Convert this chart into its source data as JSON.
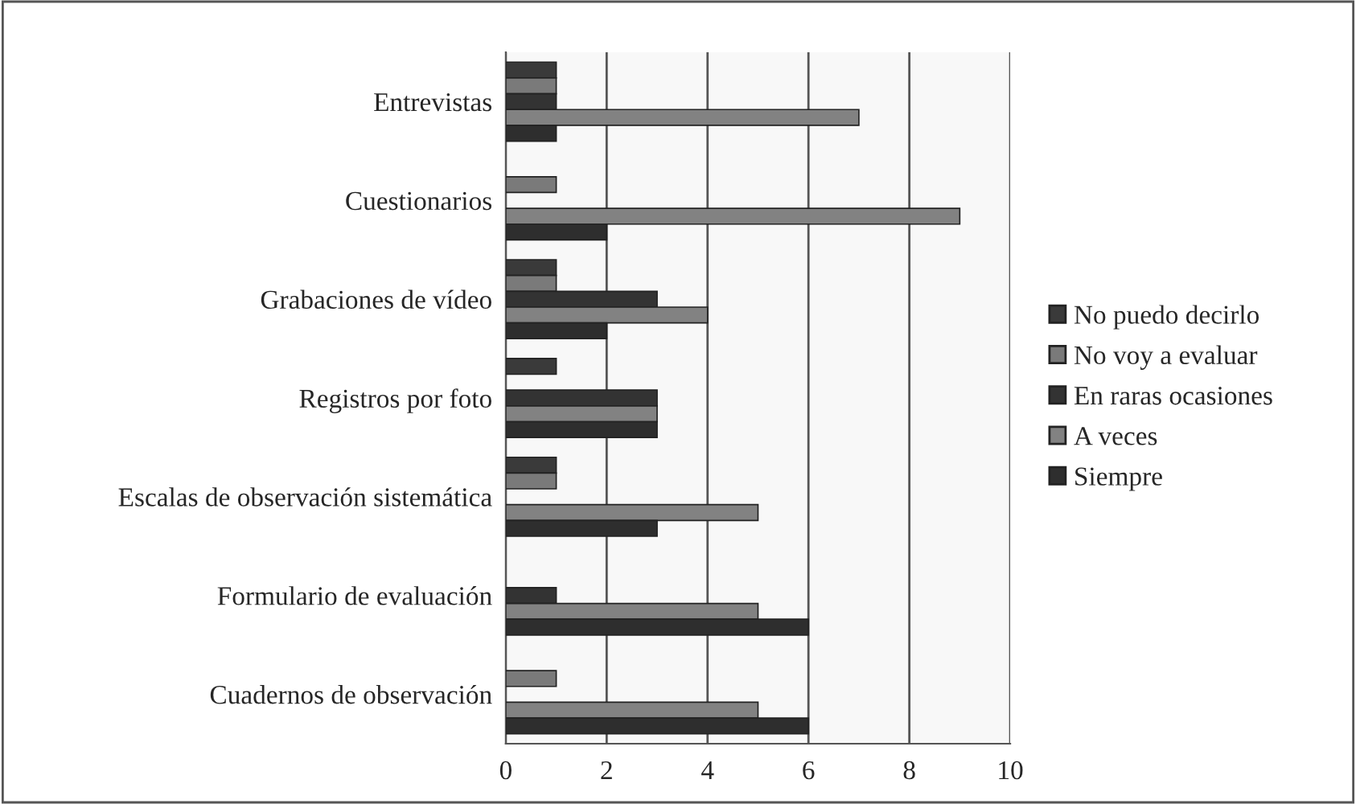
{
  "chart_data": {
    "type": "bar",
    "orientation": "horizontal",
    "categories": [
      "Entrevistas",
      "Cuestionarios",
      "Grabaciones de vídeo",
      "Registros por foto",
      "Escalas de observación sistemática",
      "Formulario de evaluación",
      "Cuadernos de observación"
    ],
    "series": [
      {
        "name": "No puedo decirlo",
        "color": "#3a3a3a",
        "values": [
          1,
          0,
          1,
          1,
          1,
          0,
          0
        ]
      },
      {
        "name": "No voy a evaluar",
        "color": "#7a7a7a",
        "values": [
          1,
          1,
          1,
          0,
          1,
          0,
          1
        ]
      },
      {
        "name": "En raras ocasiones",
        "color": "#333333",
        "values": [
          1,
          0,
          3,
          3,
          0,
          1,
          0
        ]
      },
      {
        "name": "A veces",
        "color": "#828282",
        "values": [
          7,
          9,
          4,
          3,
          5,
          5,
          5
        ]
      },
      {
        "name": "Siempre",
        "color": "#2e2e2e",
        "values": [
          1,
          2,
          2,
          3,
          3,
          6,
          6
        ]
      }
    ],
    "xlim": [
      0,
      10
    ],
    "xticks": [
      0,
      2,
      4,
      6,
      8,
      10
    ],
    "grid": "x",
    "legend": "right"
  }
}
